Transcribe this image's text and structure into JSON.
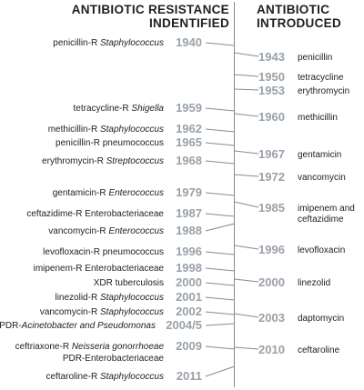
{
  "headers": {
    "left": [
      "ANTIBIOTIC RESISTANCE",
      "INDENTIFIED"
    ],
    "right": [
      "ANTIBIOTIC",
      "INTRODUCED"
    ]
  },
  "colors": {
    "year": "#9aa1a8",
    "line": "#8a8a8a",
    "text": "#222222"
  },
  "resistance": [
    {
      "year": "1940",
      "parts": [
        [
          "penicillin-R ",
          false
        ],
        [
          "Staphylococcus",
          true
        ]
      ]
    },
    {
      "year": "1959",
      "parts": [
        [
          "tetracycline-R ",
          false
        ],
        [
          "Shigella",
          true
        ]
      ]
    },
    {
      "year": "1962",
      "parts": [
        [
          "methicillin-R ",
          false
        ],
        [
          "Staphylococcus",
          true
        ]
      ]
    },
    {
      "year": "1965",
      "parts": [
        [
          "penicillin-R pneumococcus",
          false
        ]
      ]
    },
    {
      "year": "1968",
      "parts": [
        [
          "erythromycin-R ",
          false
        ],
        [
          "Streptococcus",
          true
        ]
      ]
    },
    {
      "year": "1979",
      "parts": [
        [
          "gentamicin-R ",
          false
        ],
        [
          "Enterococcus",
          true
        ]
      ]
    },
    {
      "year": "1987",
      "parts": [
        [
          "ceftazidime-R Enterobacteriaceae",
          false
        ]
      ]
    },
    {
      "year": "1988",
      "parts": [
        [
          "vancomycin-R ",
          false
        ],
        [
          "Enterococcus",
          true
        ]
      ]
    },
    {
      "year": "1996",
      "parts": [
        [
          "levofloxacin-R pneumococcus",
          false
        ]
      ]
    },
    {
      "year": "1998",
      "parts": [
        [
          "imipenem-R Enterobacteriaceae",
          false
        ]
      ]
    },
    {
      "year": "2000",
      "parts": [
        [
          "XDR tuberculosis",
          false
        ]
      ]
    },
    {
      "year": "2001",
      "parts": [
        [
          "linezolid-R ",
          false
        ],
        [
          "Staphylococcus",
          true
        ]
      ]
    },
    {
      "year": "2002",
      "parts": [
        [
          "vancomycin-R ",
          false
        ],
        [
          "Staphylococcus",
          true
        ]
      ]
    },
    {
      "year": "2004/5",
      "parts": [
        [
          "PDR-",
          false
        ],
        [
          "Acinetobacter and Pseudomonas",
          true
        ]
      ]
    },
    {
      "year": "2009",
      "parts": [
        [
          "ceftriaxone-R ",
          false
        ],
        [
          "Neisseria gonorrhoeae",
          true
        ]
      ],
      "parts2": [
        [
          "PDR-Enterobacteriaceae",
          false
        ]
      ]
    },
    {
      "year": "2011",
      "parts": [
        [
          "ceftaroline-R ",
          false
        ],
        [
          "Staphylococcus",
          true
        ]
      ]
    }
  ],
  "introduced": [
    {
      "year": "1943",
      "lines": [
        "penicillin"
      ]
    },
    {
      "year": "1950",
      "lines": [
        "tetracycline"
      ]
    },
    {
      "year": "1953",
      "lines": [
        "erythromycin"
      ]
    },
    {
      "year": "1960",
      "lines": [
        "methicillin"
      ]
    },
    {
      "year": "1967",
      "lines": [
        "gentamicin"
      ]
    },
    {
      "year": "1972",
      "lines": [
        "vancomycin"
      ]
    },
    {
      "year": "1985",
      "lines": [
        "imipenem and",
        "ceftazidime"
      ]
    },
    {
      "year": "1996",
      "lines": [
        "levofloxacin"
      ]
    },
    {
      "year": "2000",
      "lines": [
        "linezolid"
      ]
    },
    {
      "year": "2003",
      "lines": [
        "daptomycin"
      ]
    },
    {
      "year": "2010",
      "lines": [
        "ceftaroline"
      ]
    }
  ]
}
